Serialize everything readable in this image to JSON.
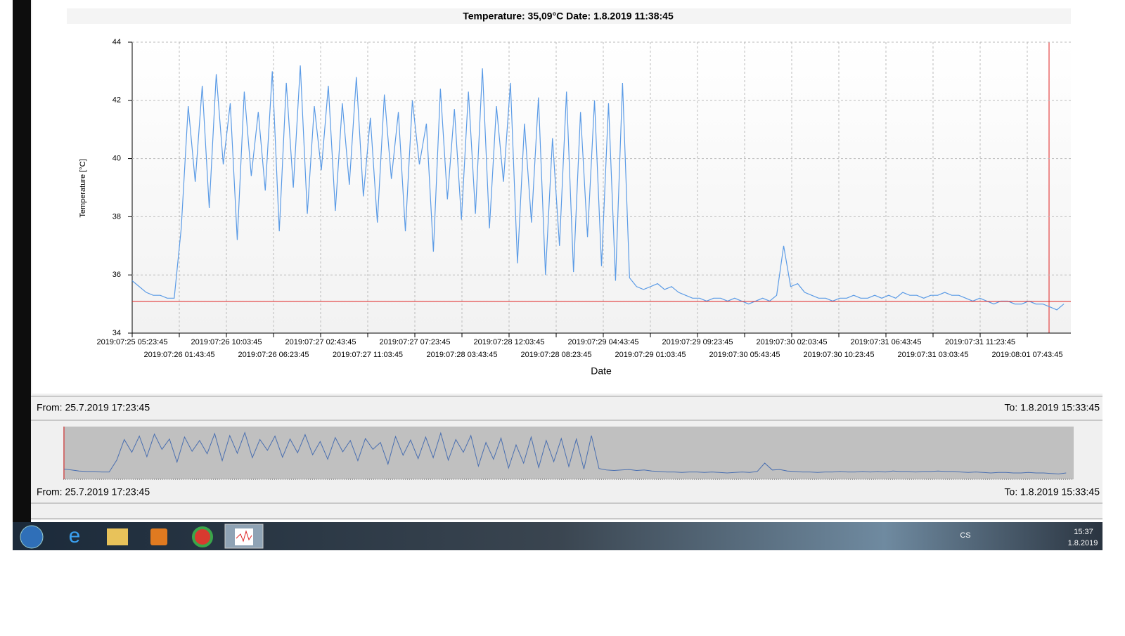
{
  "chart_data": {
    "type": "line",
    "title": "Temperature: 35,09°C  Date: 1.8.2019   11:38:45",
    "y_label": "Temperature [°C]",
    "x_label": "Date",
    "xtick_labels": [
      "2019:07:25 05:23:45",
      "2019:07:26 01:43:45",
      "2019:07:26 10:03:45",
      "2019:07:26 06:23:45",
      "2019:07:27 02:43:45",
      "2019:07:27 11:03:45",
      "2019:07:27 07:23:45",
      "2019:07:28 03:43:45",
      "2019:07:28 12:03:45",
      "2019:07:28 08:23:45",
      "2019:07:29 04:43:45",
      "2019:07:29 01:03:45",
      "2019:07:29 09:23:45",
      "2019:07:30 05:43:45",
      "2019:07:30 02:03:45",
      "2019:07:30 10:23:45",
      "2019:07:31 06:43:45",
      "2019:07:31 03:03:45",
      "2019:07:31 11:23:45",
      "2019:08:01 07:43:45"
    ],
    "ylim": [
      34,
      44
    ],
    "yticks": [
      34,
      36,
      38,
      40,
      42,
      44
    ],
    "grid": true,
    "cursor_value": 35.09,
    "series": [
      {
        "name": "Temperature",
        "color": "#5b9be6",
        "values": [
          35.8,
          35.6,
          35.4,
          35.3,
          35.3,
          35.2,
          35.2,
          37.6,
          41.8,
          39.2,
          42.5,
          38.3,
          42.9,
          39.8,
          41.9,
          37.2,
          42.3,
          39.4,
          41.6,
          38.9,
          43.0,
          37.5,
          42.6,
          39.0,
          43.2,
          38.1,
          41.8,
          39.6,
          42.5,
          38.2,
          41.9,
          39.1,
          42.8,
          38.7,
          41.4,
          37.8,
          42.2,
          39.3,
          41.6,
          37.5,
          42.0,
          39.8,
          41.2,
          36.8,
          42.4,
          38.6,
          41.7,
          37.9,
          42.3,
          38.1,
          43.1,
          37.6,
          41.8,
          39.2,
          42.6,
          36.4,
          41.2,
          37.8,
          42.1,
          36.0,
          40.7,
          37.0,
          42.3,
          36.1,
          41.6,
          37.3,
          42.0,
          36.3,
          41.9,
          35.8,
          42.6,
          35.9,
          35.6,
          35.5,
          35.6,
          35.7,
          35.5,
          35.6,
          35.4,
          35.3,
          35.2,
          35.2,
          35.1,
          35.2,
          35.2,
          35.1,
          35.2,
          35.1,
          35.0,
          35.1,
          35.2,
          35.1,
          35.3,
          37.0,
          35.6,
          35.7,
          35.4,
          35.3,
          35.2,
          35.2,
          35.1,
          35.2,
          35.2,
          35.3,
          35.2,
          35.2,
          35.3,
          35.2,
          35.3,
          35.2,
          35.4,
          35.3,
          35.3,
          35.2,
          35.3,
          35.3,
          35.4,
          35.3,
          35.3,
          35.2,
          35.1,
          35.2,
          35.1,
          35.0,
          35.1,
          35.1,
          35.0,
          35.0,
          35.1,
          35.0,
          35.0,
          34.9,
          34.8,
          35.0
        ]
      }
    ]
  },
  "range_top": {
    "from": "From: 25.7.2019 17:23:45",
    "to": "To: 1.8.2019 15:33:45"
  },
  "range_bottom": {
    "from": "From: 25.7.2019 17:23:45",
    "to": "To: 1.8.2019 15:33:45"
  },
  "taskbar": {
    "language": "CS",
    "time": "15:37",
    "date": "1.8.2019"
  }
}
